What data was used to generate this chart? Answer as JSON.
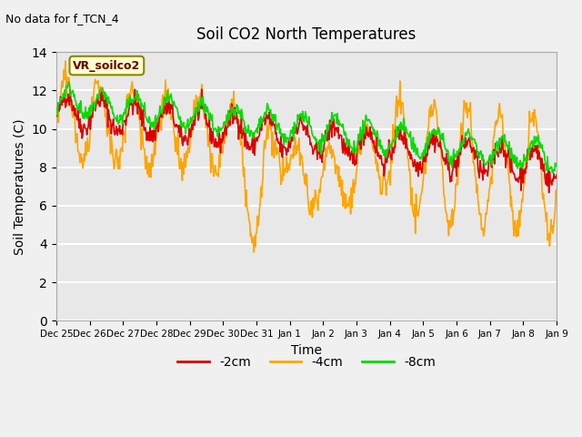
{
  "title": "Soil CO2 North Temperatures",
  "subtitle": "No data for f_TCN_4",
  "xlabel": "Time",
  "ylabel": "Soil Temperatures (C)",
  "legend_label": "VR_soilco2",
  "ylim": [
    0,
    14
  ],
  "line_colors": {
    "-2cm": "#dd0000",
    "-4cm": "#ffa500",
    "-8cm": "#00dd00"
  },
  "bg_color": "#e8e8e8",
  "tick_labels": [
    "Dec 25",
    "Dec 26",
    "Dec 27",
    "Dec 28",
    "Dec 29",
    "Dec 30",
    "Dec 31",
    "Jan 1",
    "Jan 2",
    "Jan 3",
    "Jan 4",
    "Jan 5",
    "Jan 6",
    "Jan 7",
    "Jan 8",
    "Jan 9"
  ]
}
